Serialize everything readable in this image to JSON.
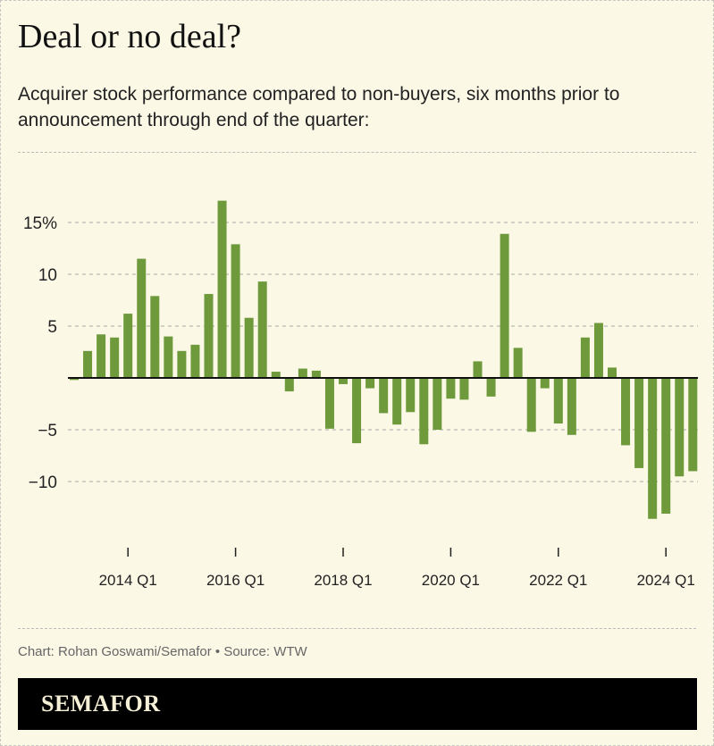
{
  "header": {
    "title": "Deal or no deal?",
    "subtitle": "Acquirer stock performance compared to non-buyers, six months prior to announcement through end of the quarter:"
  },
  "footer": {
    "credit": "Chart: Rohan Goswami/Semafor • Source: WTW",
    "logo": "SEMAFOR"
  },
  "chart_data": {
    "type": "bar",
    "title": "Deal or no deal?",
    "ylim": [
      -15,
      18
    ],
    "yticks": [
      {
        "v": 15,
        "label": "15%"
      },
      {
        "v": 10,
        "label": "10"
      },
      {
        "v": 5,
        "label": "5"
      },
      {
        "v": -5,
        "label": "−5"
      },
      {
        "v": -10,
        "label": "−10"
      }
    ],
    "xticks": [
      {
        "i": 4,
        "label": "2014 Q1"
      },
      {
        "i": 12,
        "label": "2016 Q1"
      },
      {
        "i": 20,
        "label": "2018 Q1"
      },
      {
        "i": 28,
        "label": "2020 Q1"
      },
      {
        "i": 36,
        "label": "2022 Q1"
      },
      {
        "i": 44,
        "label": "2024 Q1"
      }
    ],
    "categories_start": "2013 Q1",
    "values": [
      -0.2,
      2.6,
      4.2,
      3.9,
      6.2,
      11.5,
      7.9,
      4.0,
      2.6,
      3.2,
      8.1,
      17.1,
      12.9,
      5.8,
      9.3,
      0.6,
      -1.3,
      0.9,
      0.7,
      -4.9,
      -0.6,
      -6.3,
      -1.0,
      -3.4,
      -4.5,
      -3.3,
      -6.4,
      -5.0,
      -2.0,
      -2.1,
      1.6,
      -1.8,
      13.9,
      2.9,
      -5.2,
      -1.0,
      -4.4,
      -5.5,
      3.9,
      5.3,
      1.0,
      -6.5,
      -8.7,
      -13.6,
      -13.1,
      -9.5,
      -9.0
    ],
    "grid": true,
    "colors": {
      "bar": "#6e9a3c",
      "grid": "#aaaaaa",
      "zero": "#111111"
    }
  }
}
